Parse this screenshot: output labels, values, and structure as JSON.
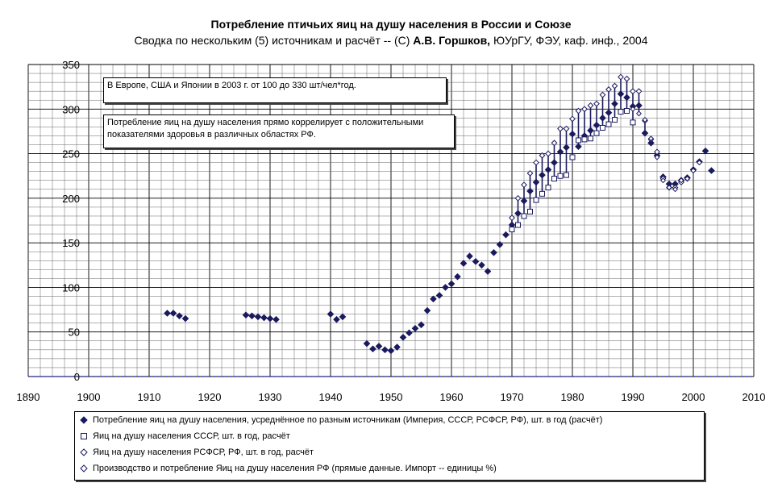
{
  "chart_data": {
    "type": "scatter",
    "title": "Потребление птичьих яиц на душу населения в России и Союзе",
    "subtitle_parts": [
      "Сводка по нескольким (5) источникам и расчёт -- (С) ",
      "А.В. Горшков,",
      " ЮУрГУ, ФЭУ, каф. инф., 2004"
    ],
    "xlim": [
      1890,
      2010
    ],
    "ylim": [
      0,
      350
    ],
    "x_ticks": [
      1890,
      1900,
      1910,
      1920,
      1930,
      1940,
      1950,
      1960,
      1970,
      1980,
      1990,
      2000,
      2010
    ],
    "y_ticks": [
      0,
      50,
      100,
      150,
      200,
      250,
      300,
      350
    ],
    "grid": true,
    "legend_position": "bottom",
    "annotations": [
      "В Европе, США и Японии в 2003 г. от 100 до 330 шт/чел*год.",
      "Потребление яиц на душу населения прямо коррелирует с положительными показателями здоровья в различных областях РФ."
    ],
    "series": [
      {
        "name": "Потребление яиц на душу населения, усреднённое по разным источникам (Империя, СССР, РСФСР, РФ), шт. в год (расчёт)",
        "marker": "filled-diamond",
        "color": "#1a1a5e",
        "points": [
          [
            1913,
            71
          ],
          [
            1914,
            71
          ],
          [
            1915,
            68
          ],
          [
            1916,
            65
          ],
          [
            1926,
            69
          ],
          [
            1927,
            68
          ],
          [
            1928,
            67
          ],
          [
            1929,
            66
          ],
          [
            1930,
            65
          ],
          [
            1931,
            64
          ],
          [
            1940,
            70
          ],
          [
            1941,
            64
          ],
          [
            1942,
            67
          ],
          [
            1946,
            37
          ],
          [
            1947,
            31
          ],
          [
            1948,
            34
          ],
          [
            1949,
            30
          ],
          [
            1950,
            29
          ],
          [
            1951,
            33
          ],
          [
            1952,
            44
          ],
          [
            1953,
            49
          ],
          [
            1954,
            54
          ],
          [
            1955,
            58
          ],
          [
            1956,
            74
          ],
          [
            1957,
            87
          ],
          [
            1958,
            91
          ],
          [
            1959,
            100
          ],
          [
            1960,
            104
          ],
          [
            1961,
            112
          ],
          [
            1962,
            127
          ],
          [
            1963,
            135
          ],
          [
            1964,
            129
          ],
          [
            1965,
            125
          ],
          [
            1966,
            118
          ],
          [
            1967,
            139
          ],
          [
            1968,
            148
          ],
          [
            1969,
            159
          ],
          [
            1970,
            170
          ],
          [
            1971,
            183
          ],
          [
            1972,
            197
          ],
          [
            1973,
            208
          ],
          [
            1974,
            218
          ],
          [
            1975,
            226
          ],
          [
            1976,
            232
          ],
          [
            1977,
            240
          ],
          [
            1978,
            252
          ],
          [
            1979,
            257
          ],
          [
            1980,
            272
          ],
          [
            1981,
            258
          ],
          [
            1982,
            270
          ],
          [
            1983,
            276
          ],
          [
            1984,
            282
          ],
          [
            1985,
            290
          ],
          [
            1986,
            296
          ],
          [
            1987,
            306
          ],
          [
            1988,
            317
          ],
          [
            1989,
            313
          ],
          [
            1990,
            303
          ],
          [
            1991,
            304
          ],
          [
            1992,
            273
          ],
          [
            1993,
            262
          ],
          [
            1994,
            248
          ],
          [
            1995,
            224
          ],
          [
            1996,
            216
          ],
          [
            1997,
            216
          ],
          [
            1998,
            220
          ],
          [
            1999,
            223
          ],
          [
            2000,
            232
          ],
          [
            2001,
            241
          ],
          [
            2002,
            253
          ],
          [
            2003,
            231
          ]
        ]
      },
      {
        "name": "Яиц на душу населения СССР, шт. в год, расчёт",
        "marker": "open-square",
        "color": "#1a1a5e",
        "points": [
          [
            1970,
            165
          ],
          [
            1971,
            170
          ],
          [
            1972,
            180
          ],
          [
            1973,
            185
          ],
          [
            1974,
            198
          ],
          [
            1975,
            205
          ],
          [
            1976,
            212
          ],
          [
            1977,
            222
          ],
          [
            1978,
            225
          ],
          [
            1979,
            226
          ],
          [
            1980,
            246
          ],
          [
            1981,
            265
          ],
          [
            1982,
            266
          ],
          [
            1983,
            267
          ],
          [
            1984,
            273
          ],
          [
            1985,
            279
          ],
          [
            1986,
            283
          ],
          [
            1987,
            288
          ],
          [
            1988,
            297
          ],
          [
            1989,
            298
          ],
          [
            1990,
            285
          ]
        ]
      },
      {
        "name": "Яиц на душу населения РСФСР, РФ, шт. в год, расчёт",
        "marker": "open-diamond",
        "color": "#1a1a5e",
        "points": [
          [
            1970,
            178
          ],
          [
            1971,
            200
          ],
          [
            1972,
            215
          ],
          [
            1973,
            228
          ],
          [
            1974,
            240
          ],
          [
            1975,
            248
          ],
          [
            1976,
            250
          ],
          [
            1977,
            262
          ],
          [
            1978,
            278
          ],
          [
            1979,
            278
          ],
          [
            1980,
            289
          ],
          [
            1981,
            298
          ],
          [
            1982,
            300
          ],
          [
            1983,
            304
          ],
          [
            1984,
            306
          ],
          [
            1985,
            316
          ],
          [
            1986,
            322
          ],
          [
            1987,
            326
          ],
          [
            1988,
            336
          ],
          [
            1989,
            334
          ],
          [
            1990,
            320
          ],
          [
            1991,
            320
          ],
          [
            1992,
            287
          ],
          [
            1993,
            266
          ],
          [
            1994,
            252
          ],
          [
            1995,
            222
          ],
          [
            1996,
            212
          ],
          [
            1997,
            212
          ],
          [
            1998,
            218
          ],
          [
            1999,
            222
          ]
        ]
      },
      {
        "name": "Производство и потребление Яиц на душу населения РФ (прямые данные. Импорт -- единицы %)",
        "marker": "open-diamond-small",
        "color": "#1a1a5e",
        "points": [
          [
            1990,
            300
          ],
          [
            1991,
            295
          ],
          [
            1992,
            288
          ],
          [
            1993,
            267
          ],
          [
            1994,
            246
          ],
          [
            1995,
            220
          ],
          [
            1996,
            212
          ],
          [
            1997,
            210
          ],
          [
            1998,
            220
          ],
          [
            1999,
            222
          ],
          [
            2000,
            231
          ],
          [
            2001,
            240
          ]
        ]
      }
    ]
  }
}
